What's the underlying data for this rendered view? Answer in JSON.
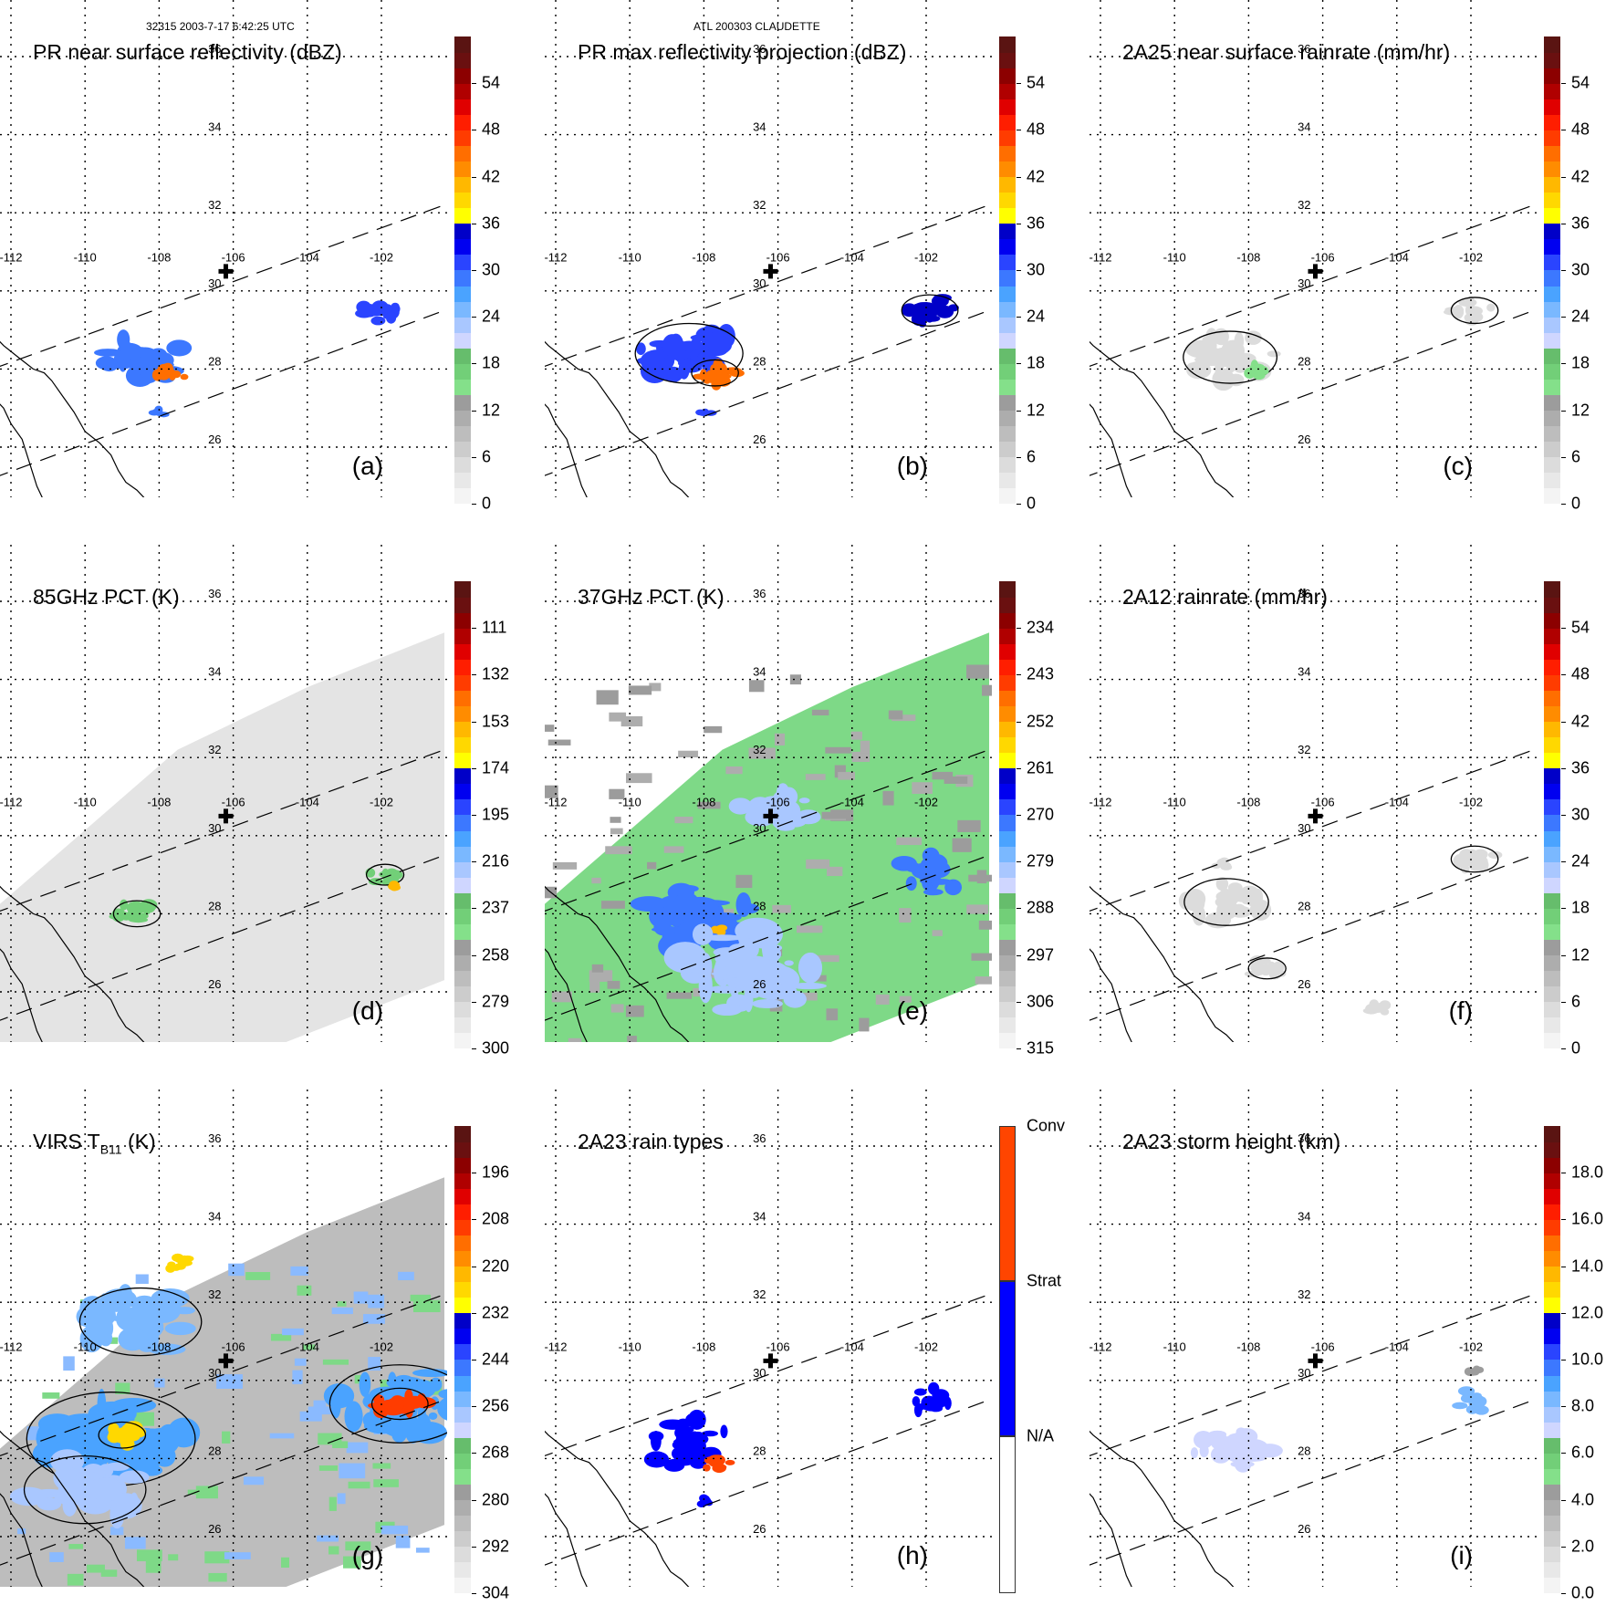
{
  "header": {
    "left": "32315 2003-7-17 6:42:25 UTC",
    "center": "ATL 200303 CLAUDETTE"
  },
  "map": {
    "lon_labels": [
      "-112",
      "-110",
      "-108",
      "-106",
      "-104",
      "-102"
    ],
    "lat_labels": [
      "36",
      "34",
      "32",
      "30",
      "28",
      "26"
    ],
    "lon_ticks": [
      -112,
      -110,
      -108,
      -106,
      -104,
      -102
    ],
    "lat_ticks": [
      36,
      34,
      32,
      30,
      28,
      26
    ],
    "extent": {
      "lon": [
        -112.5,
        -100.5
      ],
      "lat": [
        24.5,
        36.5
      ]
    },
    "storm_center": {
      "lon": -106.2,
      "lat": 30.5
    }
  },
  "colors": {
    "ramp": [
      "#f4f4f4",
      "#e8e8e8",
      "#dcdcdc",
      "#cccccc",
      "#bdbdbd",
      "#adadad",
      "#9c9c9c",
      "#84e08a",
      "#72cf78",
      "#66bd6c",
      "#cfd6ff",
      "#a9c7ff",
      "#7ab8ff",
      "#4aa3ff",
      "#3c78ff",
      "#2a44ff",
      "#0000f0",
      "#0000c8",
      "#ffff00",
      "#ffd800",
      "#ffb800",
      "#ff8c00",
      "#ff6e00",
      "#ff3c00",
      "#ff1e00",
      "#e00000",
      "#b00000",
      "#8c0000",
      "#6a1010",
      "#5a1412"
    ],
    "conv": "#ff4500",
    "strat": "#0000ff",
    "na": "#ffffff"
  },
  "chart_data": [
    {
      "id": "a",
      "type": "heatmap",
      "title": "PR near surface reflectivity (dBZ)",
      "letter": "(a)",
      "colorbar_ticks": [
        "54",
        "48",
        "42",
        "36",
        "30",
        "24",
        "18",
        "12",
        "6",
        "0"
      ],
      "colorbar_range": [
        0,
        60
      ],
      "colorbar_ramp": "ramp",
      "swath": true,
      "features": [
        {
          "lon": -108.4,
          "lat": 28.3,
          "value": 28,
          "size": 1.0
        },
        {
          "lon": -107.7,
          "lat": 27.9,
          "value": 44,
          "size": 0.4
        },
        {
          "lon": -101.9,
          "lat": 29.5,
          "value": 30,
          "size": 0.5
        },
        {
          "lon": -108.0,
          "lat": 26.9,
          "value": 28,
          "size": 0.2
        }
      ]
    },
    {
      "id": "b",
      "type": "heatmap",
      "title": "PR max reflectivity projection (dBZ)",
      "letter": "(b)",
      "colorbar_ticks": [
        "54",
        "48",
        "42",
        "36",
        "30",
        "24",
        "18",
        "12",
        "6",
        "0"
      ],
      "colorbar_range": [
        0,
        60
      ],
      "colorbar_ramp": "ramp",
      "swath": true,
      "contour": true,
      "features": [
        {
          "lon": -108.4,
          "lat": 28.4,
          "value": 30,
          "size": 1.15
        },
        {
          "lon": -107.7,
          "lat": 27.9,
          "value": 44,
          "size": 0.5
        },
        {
          "lon": -101.9,
          "lat": 29.5,
          "value": 34,
          "size": 0.6
        },
        {
          "lon": -108.0,
          "lat": 26.9,
          "value": 30,
          "size": 0.2
        }
      ]
    },
    {
      "id": "c",
      "type": "heatmap",
      "title": "2A25 near surface rainrate (mm/hr)",
      "letter": "(c)",
      "colorbar_ticks": [
        "54",
        "48",
        "42",
        "36",
        "30",
        "24",
        "18",
        "12",
        "6",
        "0"
      ],
      "colorbar_range": [
        0,
        60
      ],
      "colorbar_ramp": "ramp",
      "swath": true,
      "contour": true,
      "features": [
        {
          "lon": -108.5,
          "lat": 28.3,
          "value": 4,
          "size": 1.0
        },
        {
          "lon": -107.8,
          "lat": 27.9,
          "value": 14,
          "size": 0.35
        },
        {
          "lon": -101.9,
          "lat": 29.5,
          "value": 4,
          "size": 0.5
        }
      ]
    },
    {
      "id": "d",
      "type": "heatmap",
      "title": "85GHz PCT (K)",
      "letter": "(d)",
      "colorbar_ticks": [
        "111",
        "132",
        "153",
        "174",
        "195",
        "216",
        "237",
        "258",
        "279",
        "300"
      ],
      "colorbar_range": [
        90,
        300
      ],
      "colorbar_ramp": "ramp_rev",
      "swath": true,
      "contour": true,
      "background": "#e4e4e4",
      "features": [
        {
          "lon": -108.6,
          "lat": 28.0,
          "value": 240,
          "size": 0.5
        },
        {
          "lon": -101.9,
          "lat": 29.0,
          "value": 240,
          "size": 0.4
        },
        {
          "lon": -101.7,
          "lat": 28.7,
          "value": 160,
          "size": 0.12
        }
      ]
    },
    {
      "id": "e",
      "type": "heatmap",
      "title": "37GHz PCT (K)",
      "letter": "(e)",
      "colorbar_ticks": [
        "234",
        "243",
        "252",
        "261",
        "270",
        "279",
        "288",
        "297",
        "306",
        "315"
      ],
      "colorbar_range": [
        225,
        315
      ],
      "colorbar_ramp": "ramp_rev",
      "swath": true,
      "background": "#7ed987",
      "features": [
        {
          "lon": -108.3,
          "lat": 27.8,
          "value": 272,
          "size": 1.4
        },
        {
          "lon": -107.7,
          "lat": 27.6,
          "value": 255,
          "size": 0.2
        },
        {
          "lon": -101.9,
          "lat": 29.0,
          "value": 272,
          "size": 0.8
        },
        {
          "lon": -107.0,
          "lat": 26.5,
          "value": 282,
          "size": 1.8
        },
        {
          "lon": -106.2,
          "lat": 30.6,
          "value": 280,
          "size": 0.9
        }
      ]
    },
    {
      "id": "f",
      "type": "heatmap",
      "title": "2A12 rainrate (mm/hr)",
      "letter": "(f)",
      "colorbar_ticks": [
        "54",
        "48",
        "42",
        "36",
        "30",
        "24",
        "18",
        "12",
        "6",
        "0"
      ],
      "colorbar_range": [
        0,
        60
      ],
      "colorbar_ramp": "ramp",
      "swath": true,
      "contour": true,
      "features": [
        {
          "lon": -108.6,
          "lat": 28.3,
          "value": 4,
          "size": 0.9
        },
        {
          "lon": -101.9,
          "lat": 29.4,
          "value": 4,
          "size": 0.5
        },
        {
          "lon": -107.5,
          "lat": 26.6,
          "value": 4,
          "size": 0.4
        },
        {
          "lon": -104.5,
          "lat": 25.6,
          "value": 4,
          "size": 0.3
        },
        {
          "lon": -108.7,
          "lat": 29.3,
          "value": 4,
          "size": 0.2
        }
      ]
    },
    {
      "id": "g",
      "type": "heatmap",
      "title": "VIRS T",
      "title_sub": "B11",
      "title_tail": " (K)",
      "letter": "(g)",
      "colorbar_ticks": [
        "196",
        "208",
        "220",
        "232",
        "244",
        "256",
        "268",
        "280",
        "292",
        "304"
      ],
      "colorbar_range": [
        184,
        304
      ],
      "colorbar_ramp": "ramp_rev",
      "swath": true,
      "contour": true,
      "background": "#bdbdbd",
      "features": [
        {
          "lon": -109.3,
          "lat": 28.5,
          "value": 250,
          "size": 1.8
        },
        {
          "lon": -109.0,
          "lat": 28.6,
          "value": 226,
          "size": 0.5
        },
        {
          "lon": -101.5,
          "lat": 29.4,
          "value": 250,
          "size": 1.5
        },
        {
          "lon": -101.5,
          "lat": 29.4,
          "value": 210,
          "size": 0.6
        },
        {
          "lon": -108.5,
          "lat": 31.5,
          "value": 255,
          "size": 1.3
        },
        {
          "lon": -110.0,
          "lat": 27.2,
          "value": 258,
          "size": 1.3
        },
        {
          "lon": -107.5,
          "lat": 33.0,
          "value": 228,
          "size": 0.3
        }
      ]
    },
    {
      "id": "h",
      "type": "heatmap",
      "title": "2A23 rain types",
      "letter": "(h)",
      "colorbar_ticks": [
        "Conv",
        "Strat",
        "N/A"
      ],
      "categorical": true,
      "swath": true,
      "features": [
        {
          "lon": -108.4,
          "lat": 28.4,
          "value": "strat",
          "size": 1.0
        },
        {
          "lon": -107.7,
          "lat": 27.9,
          "value": "conv",
          "size": 0.35
        },
        {
          "lon": -101.9,
          "lat": 29.5,
          "value": "strat",
          "size": 0.5
        },
        {
          "lon": -108.0,
          "lat": 26.9,
          "value": "strat",
          "size": 0.15
        }
      ]
    },
    {
      "id": "i",
      "type": "heatmap",
      "title": "2A23 storm height (km)",
      "letter": "(i)",
      "colorbar_ticks": [
        "18.0",
        "16.0",
        "14.0",
        "12.0",
        "10.0",
        "8.0",
        "6.0",
        "4.0",
        "2.0",
        "0.0"
      ],
      "colorbar_range": [
        0,
        20
      ],
      "colorbar_ramp": "ramp",
      "swath": true,
      "features": [
        {
          "lon": -108.5,
          "lat": 28.3,
          "value": 7,
          "size": 0.9
        },
        {
          "lon": -101.9,
          "lat": 29.5,
          "value": 8,
          "size": 0.45
        },
        {
          "lon": -101.9,
          "lat": 30.2,
          "value": 4,
          "size": 0.2
        }
      ]
    }
  ]
}
